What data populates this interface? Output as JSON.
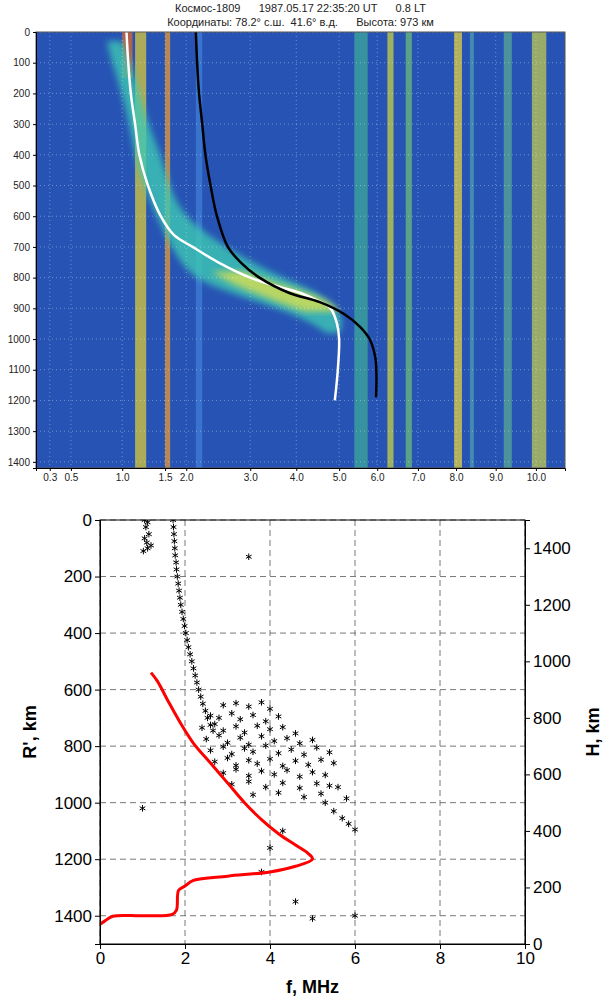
{
  "chart_data": [
    {
      "type": "ionogram",
      "title": "Космос-1809      1987.05.17 22:35:20 UT      0.8 LT",
      "subtitle": "Координаты: 78.2° с.ш.  41.6° в.д.      Высота: 973 км",
      "xlim": [
        0.2,
        10.7
      ],
      "xticks": [
        0.3,
        0.5,
        {
          "value": 1,
          "label": "1.0"
        },
        1.5,
        {
          "value": 2,
          "label": "2.0"
        },
        {
          "value": 3,
          "label": "3.0"
        },
        {
          "value": 4,
          "label": "4.0"
        },
        {
          "value": 5,
          "label": "5.0"
        },
        {
          "value": 6,
          "label": "6.0"
        },
        {
          "value": 7,
          "label": "7.0"
        },
        {
          "value": 8,
          "label": "8.0"
        },
        {
          "value": 9,
          "label": "9.0"
        },
        {
          "value": 10,
          "label": "10.0"
        }
      ],
      "ylim": [
        0,
        1420
      ],
      "yticks": [
        0,
        100,
        200,
        300,
        400,
        500,
        600,
        700,
        800,
        900,
        1000,
        1100,
        1200,
        1300,
        1400
      ],
      "grid": true,
      "bands": {
        "from": [
          1.0,
          1.15,
          1.5,
          2.15,
          5.4,
          6.25,
          6.7,
          7.95,
          8.35,
          9.2,
          9.9
        ],
        "to": [
          1.12,
          1.28,
          1.62,
          2.25,
          5.75,
          6.4,
          6.85,
          8.15,
          8.45,
          9.4,
          10.25
        ],
        "ymin": [
          0,
          0,
          0,
          0,
          0,
          0,
          0,
          0,
          0,
          0,
          0
        ],
        "ymax": [
          150,
          1420,
          1420,
          1420,
          1420,
          1420,
          1420,
          1420,
          1420,
          1420,
          1420
        ],
        "colors": [
          "#e0662c",
          "#d8c83c",
          "#e89a34",
          "#3f7fd6",
          "#3ea898",
          "#c8d044",
          "#6cbc78",
          "#e4d040",
          "#4c9cb0",
          "#58a894",
          "#c0c850"
        ]
      },
      "traces": [
        {
          "color": "#3ec8b4",
          "y": [
            30,
            100,
            200,
            300,
            400,
            500,
            600,
            700,
            780,
            830,
            870,
            910,
            950,
            980
          ],
          "from": [
            0.85,
            0.9,
            1.0,
            1.08,
            1.15,
            1.25,
            1.4,
            1.65,
            2.0,
            2.4,
            3.0,
            3.8,
            4.4,
            4.7
          ],
          "to": [
            1.0,
            1.1,
            1.2,
            1.3,
            1.45,
            1.6,
            1.9,
            2.6,
            3.4,
            4.2,
            4.7,
            5.0,
            5.1,
            5.0
          ]
        },
        {
          "color": "#d8e050",
          "y": [
            780,
            820,
            850,
            880,
            910
          ],
          "from": [
            2.4,
            2.7,
            3.1,
            3.6,
            4.2
          ],
          "to": [
            2.9,
            3.6,
            4.3,
            4.8,
            5.0
          ]
        }
      ],
      "series": [
        {
          "type": "line",
          "color": "#ffffff",
          "x": [
            1.05,
            1.07,
            1.1,
            1.15,
            1.2,
            1.3,
            1.45,
            1.7,
            2.1,
            2.5,
            3.0,
            3.5,
            4.1,
            4.5,
            4.8,
            4.95,
            5.0,
            4.97,
            4.9
          ],
          "values": [
            0,
            100,
            200,
            300,
            400,
            500,
            600,
            660,
            700,
            750,
            800,
            825,
            850,
            875,
            900,
            950,
            1000,
            1100,
            1200
          ]
        },
        {
          "type": "line",
          "color": "#000000",
          "x": [
            2.15,
            2.17,
            2.2,
            2.25,
            2.3,
            2.38,
            2.48,
            2.65,
            2.85,
            3.2,
            3.85,
            4.55,
            5.15,
            5.55,
            5.8,
            5.95,
            5.98,
            5.97
          ],
          "values": [
            0,
            100,
            200,
            300,
            400,
            500,
            600,
            700,
            750,
            800,
            850,
            880,
            920,
            960,
            1000,
            1060,
            1120,
            1190
          ]
        }
      ]
    },
    {
      "type": "scatter",
      "xlabel": "f, MHz",
      "ylabel": "R', km",
      "y2label": "H, km",
      "xlim": [
        0,
        10
      ],
      "xticks": [
        0,
        2,
        4,
        6,
        8,
        10
      ],
      "ylim": [
        0,
        1500
      ],
      "yticks": [
        0,
        200,
        400,
        600,
        800,
        1000,
        1200,
        1400
      ],
      "y2lim": [
        0,
        1500
      ],
      "y2ticks": [
        0,
        200,
        400,
        600,
        800,
        1000,
        1200,
        1400
      ],
      "grid": true,
      "series": [
        {
          "type": "scatter",
          "marker": "asterisk",
          "color": "#000000",
          "x": [
            1.05,
            1.12,
            1.08,
            1.15,
            1.05,
            1.1,
            1.2,
            1.12,
            1.02,
            1.72,
            1.73,
            1.74,
            1.75,
            1.76,
            1.77,
            1.79,
            1.8,
            1.82,
            1.84,
            1.86,
            1.88,
            1.9,
            1.93,
            1.96,
            1.99,
            2.02,
            2.05,
            2.08,
            2.12,
            2.16,
            2.2,
            2.24,
            2.28,
            2.32,
            2.37,
            2.42,
            2.48,
            2.53,
            2.6,
            2.66,
            2.9,
            3.2,
            3.5,
            3.8,
            4.0,
            2.6,
            2.8,
            3.1,
            3.3,
            3.6,
            3.9,
            4.2,
            2.4,
            2.7,
            2.9,
            3.2,
            3.4,
            3.7,
            4.0,
            4.3,
            4.6,
            2.5,
            2.8,
            3.0,
            3.3,
            3.5,
            3.8,
            4.1,
            4.4,
            4.7,
            5.0,
            2.6,
            2.9,
            3.1,
            3.4,
            3.6,
            3.9,
            4.2,
            4.5,
            4.8,
            5.1,
            5.4,
            2.7,
            3.0,
            3.2,
            3.5,
            3.7,
            4.0,
            4.3,
            4.6,
            4.9,
            5.2,
            5.5,
            2.9,
            3.2,
            3.5,
            3.8,
            4.1,
            4.4,
            4.7,
            5.0,
            5.3,
            3.1,
            3.5,
            3.9,
            4.3,
            4.7,
            5.1,
            5.4,
            3.6,
            4.2,
            4.8,
            5.2,
            5.3,
            5.5,
            5.7,
            5.85,
            6.0,
            5.6,
            5.8,
            1.0,
            3.5,
            4.6,
            5.0,
            6.0,
            3.8,
            4.0,
            4.3
          ],
          "values": [
            0,
            8,
            25,
            50,
            65,
            80,
            90,
            100,
            110,
            0,
            25,
            50,
            75,
            100,
            125,
            150,
            175,
            200,
            225,
            250,
            275,
            300,
            325,
            350,
            375,
            400,
            425,
            450,
            475,
            500,
            525,
            550,
            575,
            600,
            625,
            650,
            675,
            700,
            725,
            745,
            655,
            648,
            660,
            645,
            668,
            692,
            700,
            684,
            705,
            690,
            712,
            695,
            735,
            722,
            745,
            730,
            752,
            728,
            740,
            733,
            755,
            775,
            762,
            788,
            770,
            795,
            765,
            782,
            772,
            790,
            778,
            815,
            802,
            828,
            808,
            820,
            798,
            825,
            812,
            830,
            805,
            822,
            855,
            842,
            868,
            850,
            862,
            845,
            870,
            852,
            866,
            848,
            860,
            895,
            882,
            905,
            888,
            900,
            885,
            908,
            892,
            902,
            935,
            925,
            945,
            930,
            948,
            932,
            940,
            972,
            965,
            980,
            968,
            1000,
            1030,
            1055,
            1075,
            1095,
            945,
            985,
            1020,
            130,
            1350,
            1410,
            1400,
            1245,
            1160,
            1100
          ]
        },
        {
          "type": "line",
          "axis": "y2",
          "color": "#ff0000",
          "x": [
            0,
            0.1,
            0.3,
            1.0,
            1.7,
            1.8,
            1.85,
            2.0,
            2.2,
            3.0,
            4.0,
            4.6,
            5.0,
            4.9,
            4.6,
            4.2,
            3.8,
            3.4,
            3.0,
            2.6,
            2.2,
            1.9,
            1.6,
            1.35,
            1.2
          ],
          "values": [
            70,
            80,
            98,
            100,
            105,
            120,
            190,
            205,
            225,
            240,
            255,
            275,
            300,
            320,
            350,
            390,
            440,
            500,
            570,
            640,
            710,
            780,
            860,
            930,
            960
          ]
        }
      ]
    }
  ]
}
